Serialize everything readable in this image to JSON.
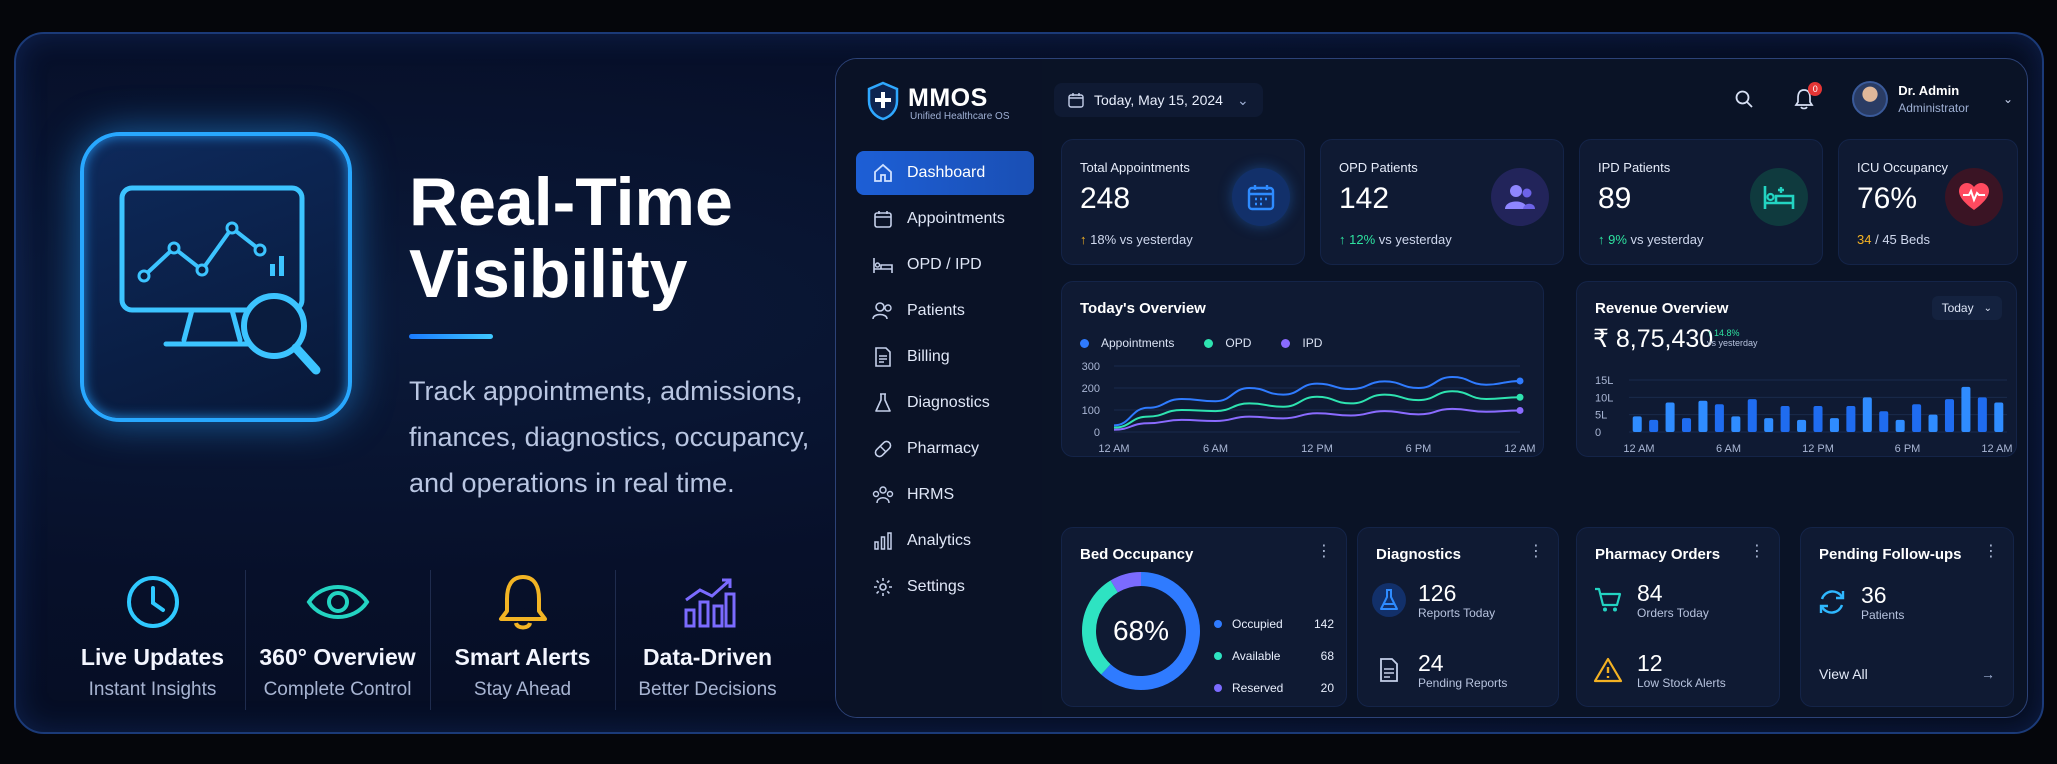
{
  "hero": {
    "title_line1": "Real-Time",
    "title_line2": "Visibility",
    "description": "Track appointments, admissions, finances, diagnostics, occupancy, and operations in real time."
  },
  "features": [
    {
      "title": "Live Updates",
      "subtitle": "Instant Insights",
      "icon": "clock-icon",
      "color": "#2fc9ff"
    },
    {
      "title": "360° Overview",
      "subtitle": "Complete Control",
      "icon": "eye-icon",
      "color": "#23d4c2"
    },
    {
      "title": "Smart Alerts",
      "subtitle": "Stay Ahead",
      "icon": "bell-icon",
      "color": "#f2b424"
    },
    {
      "title": "Data-Driven",
      "subtitle": "Better Decisions",
      "icon": "bar-chart-icon",
      "color": "#7b6bff"
    }
  ],
  "app": {
    "name": "MMOS",
    "tagline": "Unified Healthcare OS"
  },
  "sidebar": {
    "items": [
      {
        "label": "Dashboard",
        "icon": "home-icon",
        "active": true
      },
      {
        "label": "Appointments",
        "icon": "calendar-icon"
      },
      {
        "label": "OPD / IPD",
        "icon": "bed-icon"
      },
      {
        "label": "Patients",
        "icon": "users-icon"
      },
      {
        "label": "Billing",
        "icon": "receipt-icon"
      },
      {
        "label": "Diagnostics",
        "icon": "flask-icon"
      },
      {
        "label": "Pharmacy",
        "icon": "pill-icon"
      },
      {
        "label": "HRMS",
        "icon": "team-icon"
      },
      {
        "label": "Analytics",
        "icon": "analytics-icon"
      },
      {
        "label": "Settings",
        "icon": "gear-icon"
      }
    ]
  },
  "topbar": {
    "date": "Today, May 15, 2024",
    "notification_count": "0",
    "user_name": "Dr. Admin",
    "user_role": "Administrator"
  },
  "stats": [
    {
      "label": "Total Appointments",
      "value": "248",
      "trend_value": "18%",
      "trend_text": "vs yesterday",
      "trend_color": "#f4b223",
      "icon": "calendar-icon",
      "icon_bg": "#12306a",
      "icon_color": "#2e8bff"
    },
    {
      "label": "OPD Patients",
      "value": "142",
      "trend_value": "12%",
      "trend_text": "vs yesterday",
      "trend_color": "#2ee3a0",
      "icon": "users-icon",
      "icon_bg": "#22245a",
      "icon_color": "#8f86ff"
    },
    {
      "label": "IPD Patients",
      "value": "89",
      "trend_value": "9%",
      "trend_text": "vs yesterday",
      "trend_color": "#2ee3a0",
      "icon": "bed-icon",
      "icon_bg": "#0f3a3e",
      "icon_color": "#23d4c2"
    },
    {
      "label": "ICU Occupancy",
      "value": "76%",
      "trend_value": "34",
      "trend_text": "/ 45 Beds",
      "trend_color": "#f4b223",
      "icon": "heart-pulse-icon",
      "icon_bg": "#3a1424",
      "icon_color": "#ff4a5f"
    }
  ],
  "overview": {
    "title": "Today's Overview",
    "legend": [
      "Appointments",
      "OPD",
      "IPD"
    ]
  },
  "revenue": {
    "title": "Revenue Overview",
    "amount": "₹ 8,75,430",
    "change": "↑ 14.8%",
    "change_text": "vs yesterday",
    "period": "Today"
  },
  "chart_data": [
    {
      "type": "line",
      "title": "Today's Overview",
      "x": [
        "12 AM",
        "",
        "",
        "6 AM",
        "",
        "",
        "12 PM",
        "",
        "",
        "6 PM",
        "",
        "",
        "12 AM"
      ],
      "x_ticks": [
        "12 AM",
        "6 AM",
        "12 PM",
        "6 PM",
        "12 AM"
      ],
      "ylim": [
        0,
        300
      ],
      "y_ticks": [
        "0",
        "100",
        "200",
        "300"
      ],
      "series": [
        {
          "name": "Appointments",
          "color": "#2f7bff",
          "values": [
            30,
            110,
            150,
            140,
            200,
            170,
            220,
            195,
            230,
            200,
            250,
            215,
            232
          ]
        },
        {
          "name": "OPD",
          "color": "#2ee3b0",
          "values": [
            20,
            70,
            100,
            95,
            130,
            115,
            160,
            130,
            170,
            145,
            185,
            150,
            158
          ]
        },
        {
          "name": "IPD",
          "color": "#8a6bff",
          "values": [
            10,
            40,
            55,
            50,
            70,
            62,
            85,
            75,
            95,
            80,
            105,
            92,
            98
          ]
        }
      ]
    },
    {
      "type": "bar",
      "title": "Revenue Overview",
      "x_ticks": [
        "12 AM",
        "6 AM",
        "12 PM",
        "6 PM",
        "12 AM"
      ],
      "ylim": [
        0,
        15
      ],
      "y_ticks": [
        "0",
        "5L",
        "10L",
        "15L"
      ],
      "values": [
        4.5,
        3.5,
        8.5,
        4,
        9,
        8,
        4.5,
        9.5,
        4,
        7.5,
        3.5,
        7.5,
        4,
        7.5,
        10,
        6,
        3.5,
        8,
        5,
        9.5,
        13,
        10,
        8.5
      ]
    }
  ],
  "bed_occupancy": {
    "title": "Bed Occupancy",
    "percent_label": "68%",
    "items": [
      {
        "label": "Occupied",
        "value": "142",
        "color": "#2f7bff"
      },
      {
        "label": "Available",
        "value": "68",
        "color": "#2ee3c2"
      },
      {
        "label": "Reserved",
        "value": "20",
        "color": "#7b6bff"
      }
    ]
  },
  "diagnostics": {
    "title": "Diagnostics",
    "rows": [
      {
        "value": "126",
        "label": "Reports Today"
      },
      {
        "value": "24",
        "label": "Pending Reports"
      }
    ]
  },
  "pharmacy": {
    "title": "Pharmacy Orders",
    "rows": [
      {
        "value": "84",
        "label": "Orders Today"
      },
      {
        "value": "12",
        "label": "Low Stock Alerts"
      }
    ]
  },
  "followups": {
    "title": "Pending Follow-ups",
    "value": "36",
    "label": "Patients",
    "link": "View All"
  }
}
